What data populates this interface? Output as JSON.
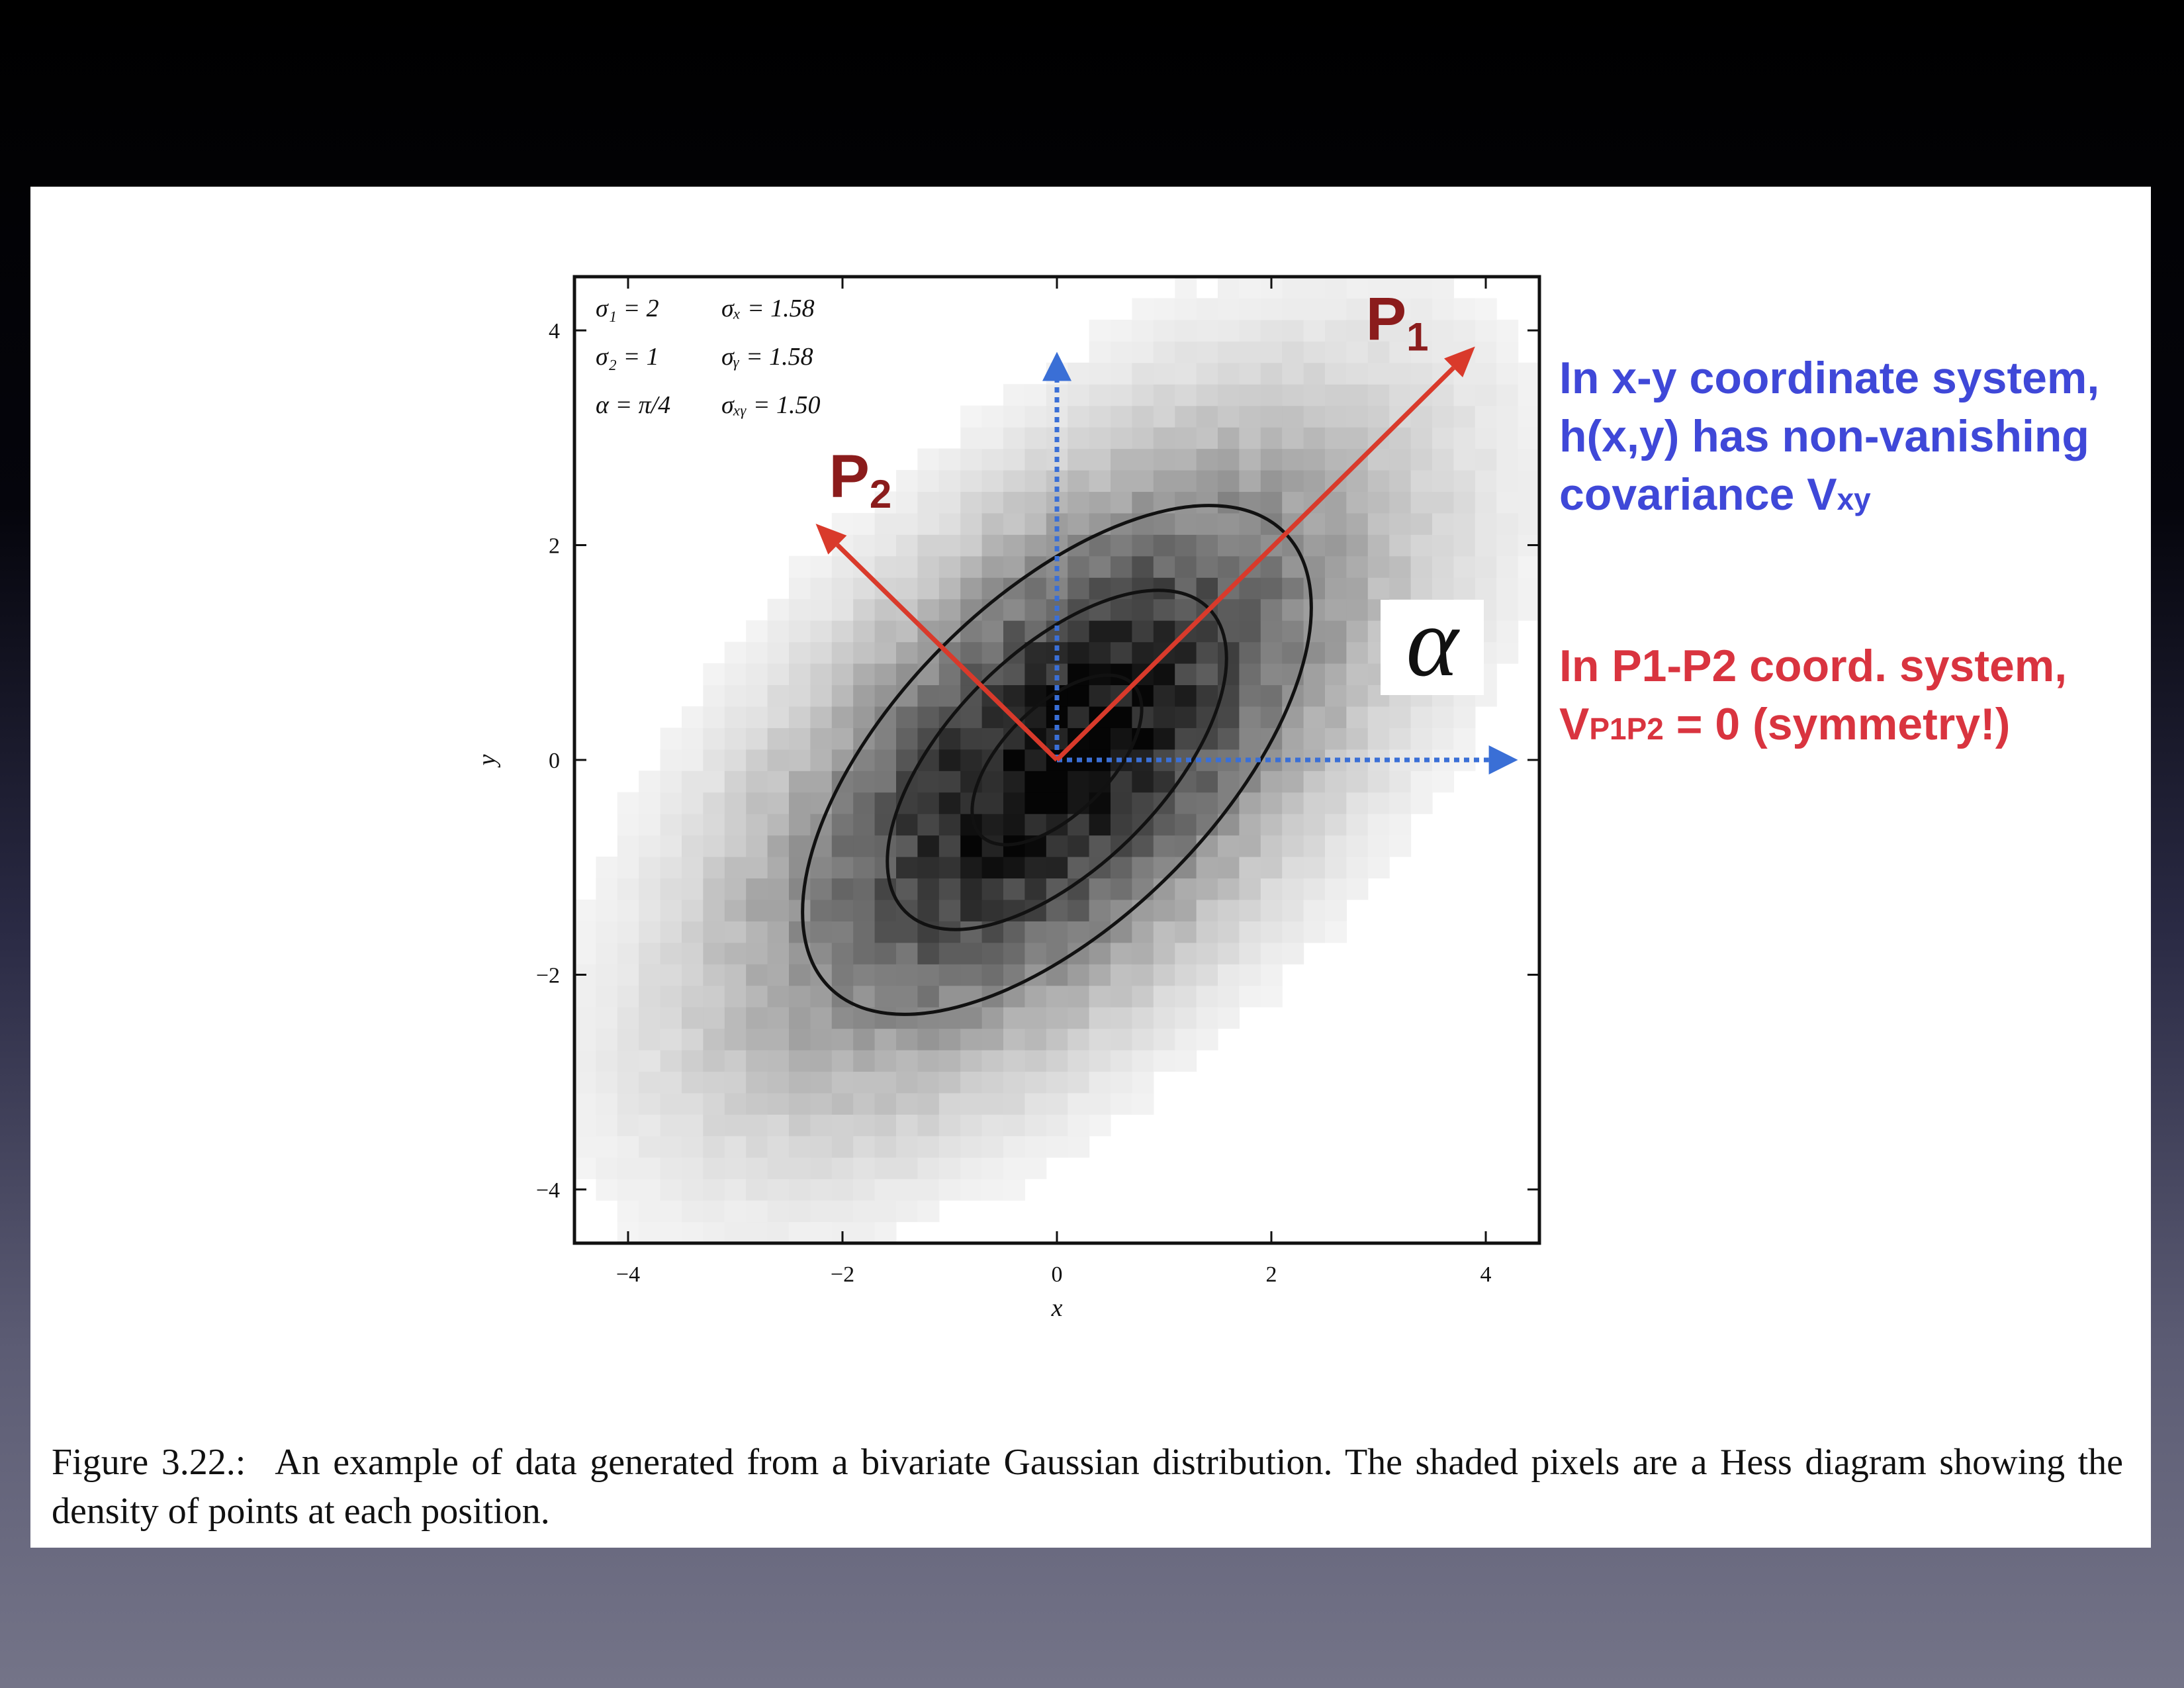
{
  "chart_data": {
    "type": "heatmap",
    "xlabel": "x",
    "ylabel": "y",
    "xlim": [
      -4.5,
      4.5
    ],
    "ylim": [
      -4.5,
      4.5
    ],
    "xticks": [
      "−4",
      "−2",
      "0",
      "2",
      "4"
    ],
    "xtick_values": [
      -4,
      -2,
      0,
      2,
      4
    ],
    "yticks": [
      "−4",
      "−2",
      "0",
      "2",
      "4"
    ],
    "ytick_values": [
      -4,
      -2,
      0,
      2,
      4
    ],
    "distribution": {
      "sigma1": 2,
      "sigma2": 1,
      "alpha_rad": 0.7854,
      "sigma_x": 1.58,
      "sigma_y": 1.58,
      "sigma_xy": 1.5,
      "bin_width": 0.2,
      "contour_levels_sigma": [
        1,
        2,
        3
      ]
    },
    "legend_text": [
      [
        "σ₁ = 2",
        "σₓ = 1.58"
      ],
      [
        "σ₂ = 1",
        "σᵧ = 1.58"
      ],
      [
        "α = π/4",
        "σₓᵧ = 1.50"
      ]
    ],
    "axes_arrows": [
      {
        "label": "P",
        "sub": "1",
        "dx": 3.9,
        "dy": 3.85,
        "color": "#d93a2b"
      },
      {
        "label": "P",
        "sub": "2",
        "dx": -2.25,
        "dy": 2.2,
        "color": "#d93a2b"
      }
    ],
    "reference_arrows": [
      {
        "dx": 0,
        "dy": 3.8,
        "color": "#3a6fd6"
      },
      {
        "dx": 4.3,
        "dy": 0,
        "color": "#3a6fd6"
      }
    ],
    "alpha_label": "α"
  },
  "annotations": {
    "blue_lines": [
      "In x-y coordinate system,",
      "h(x,y) has non-vanishing",
      "covariance V"
    ],
    "blue_sub": "xy",
    "red_line1": "In P1-P2 coord. system,",
    "red_prefix": "V",
    "red_sub": "P1P2",
    "red_suffix": " = 0 (symmetry!)"
  },
  "caption": {
    "figure_number": "Figure 3.22.:",
    "text": "An example of data generated from a bivariate Gaussian distribution. The shaded pixels are a Hess diagram showing the density of points at each position."
  },
  "colors": {
    "blue_annotation": "#3f48d8",
    "red_annotation": "#d9343f",
    "red_arrow": "#d93a2b",
    "blue_arrow": "#3a6fd6",
    "p_label": "#8b1c1c"
  }
}
